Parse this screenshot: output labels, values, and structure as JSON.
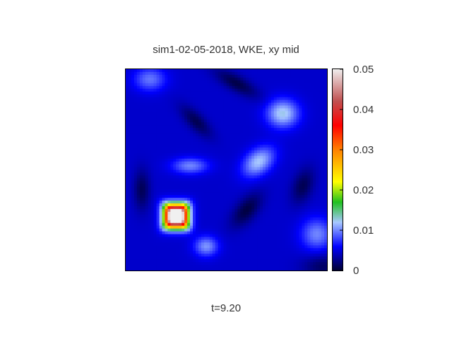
{
  "chart_data": {
    "type": "heatmap",
    "title": "sim1-02-05-2018, WKE, xy mid",
    "footer": "t=9.20",
    "colorbar": {
      "min": 0,
      "max": 0.05,
      "ticks": [
        {
          "value": 0,
          "label": "0"
        },
        {
          "value": 0.01,
          "label": "0.01"
        },
        {
          "value": 0.02,
          "label": "0.02"
        },
        {
          "value": 0.03,
          "label": "0.03"
        },
        {
          "value": 0.04,
          "label": "0.04"
        },
        {
          "value": 0.05,
          "label": "0.05"
        }
      ],
      "colormap": [
        {
          "value": 0.0,
          "color": "#000030"
        },
        {
          "value": 0.006,
          "color": "#0000ff"
        },
        {
          "value": 0.012,
          "color": "#a8c8ff"
        },
        {
          "value": 0.017,
          "color": "#20c020"
        },
        {
          "value": 0.022,
          "color": "#ffff00"
        },
        {
          "value": 0.03,
          "color": "#ff8000"
        },
        {
          "value": 0.036,
          "color": "#ff0000"
        },
        {
          "value": 0.042,
          "color": "#c05050"
        },
        {
          "value": 0.05,
          "color": "#f0f0f0"
        }
      ]
    },
    "field": {
      "grid_resolution": 72,
      "background_level": 0.0045,
      "features": [
        {
          "cx": 0.25,
          "cy": 0.27,
          "sx": 0.05,
          "sy": 0.05,
          "amp": 0.072,
          "kind": "peak"
        },
        {
          "cx": 0.66,
          "cy": 0.54,
          "sx": 0.09,
          "sy": 0.06,
          "amp": 0.0075,
          "kind": "bump",
          "angle": 40
        },
        {
          "cx": 0.78,
          "cy": 0.78,
          "sx": 0.08,
          "sy": 0.07,
          "amp": 0.008,
          "kind": "bump"
        },
        {
          "cx": 0.32,
          "cy": 0.52,
          "sx": 0.09,
          "sy": 0.04,
          "amp": 0.0055,
          "kind": "bump"
        },
        {
          "cx": 0.4,
          "cy": 0.12,
          "sx": 0.06,
          "sy": 0.05,
          "amp": 0.006,
          "kind": "bump"
        },
        {
          "cx": 0.95,
          "cy": 0.18,
          "sx": 0.08,
          "sy": 0.08,
          "amp": 0.0055,
          "kind": "bump"
        },
        {
          "cx": 0.12,
          "cy": 0.95,
          "sx": 0.08,
          "sy": 0.06,
          "amp": 0.005,
          "kind": "bump"
        },
        {
          "cx": 0.6,
          "cy": 0.3,
          "sx": 0.1,
          "sy": 0.05,
          "amp": -0.004,
          "kind": "trough",
          "angle": 50
        },
        {
          "cx": 0.55,
          "cy": 0.93,
          "sx": 0.12,
          "sy": 0.04,
          "amp": -0.0038,
          "kind": "trough",
          "angle": -30
        },
        {
          "cx": 0.88,
          "cy": 0.42,
          "sx": 0.09,
          "sy": 0.05,
          "amp": -0.0035,
          "kind": "trough",
          "angle": 70
        },
        {
          "cx": 0.08,
          "cy": 0.4,
          "sx": 0.04,
          "sy": 0.1,
          "amp": -0.0034,
          "kind": "trough"
        },
        {
          "cx": 0.35,
          "cy": 0.74,
          "sx": 0.1,
          "sy": 0.04,
          "amp": -0.0035,
          "kind": "trough",
          "angle": -45
        },
        {
          "cx": 0.98,
          "cy": 0.02,
          "sx": 0.1,
          "sy": 0.06,
          "amp": -0.003,
          "kind": "trough"
        }
      ]
    }
  }
}
